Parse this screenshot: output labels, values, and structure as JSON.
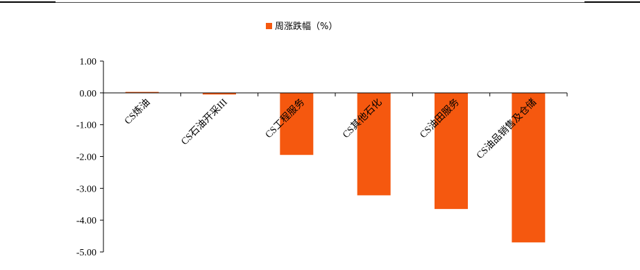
{
  "chart_data": {
    "type": "bar",
    "categories": [
      "CS炼油",
      "CS石油开采III",
      "CS工程服务",
      "CS其他石化",
      "CS油田服务",
      "CS油品销售及仓储"
    ],
    "series": [
      {
        "name": "周涨跌幅（%）",
        "values": [
          0.03,
          -0.05,
          -1.95,
          -3.22,
          -3.65,
          -4.7
        ]
      }
    ],
    "ylim": [
      -5.0,
      1.0
    ],
    "yticks": [
      "1.00",
      "0.00",
      "-1.00",
      "-2.00",
      "-3.00",
      "-4.00",
      "-5.00"
    ],
    "grid": false,
    "legend": "top-center",
    "colors": {
      "bar": "#F5580F",
      "axis": "#000000"
    }
  }
}
